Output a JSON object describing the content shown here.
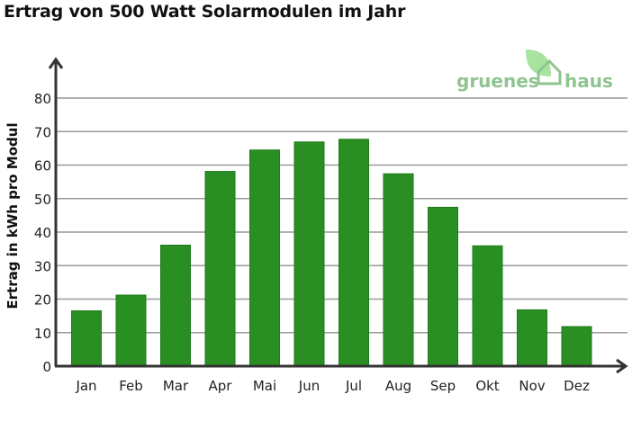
{
  "chart_data": {
    "type": "bar",
    "title": "Ertrag von 500 Watt Solarmodulen im Jahr",
    "xlabel": "",
    "ylabel": "Ertrag in kWh pro Modul",
    "categories": [
      "Jan",
      "Feb",
      "Mar",
      "Apr",
      "Mai",
      "Jun",
      "Jul",
      "Aug",
      "Sep",
      "Okt",
      "Nov",
      "Dez"
    ],
    "values": [
      16.5,
      21.2,
      36.1,
      58.1,
      64.5,
      66.9,
      67.7,
      57.4,
      47.4,
      35.9,
      16.8,
      11.8
    ],
    "ylim": [
      0,
      80
    ],
    "yticks": [
      0,
      10,
      20,
      30,
      40,
      50,
      60,
      70,
      80
    ],
    "grid": true,
    "bar_color": "#2a8f22",
    "legend": "none"
  },
  "logo": {
    "left": "gruenes",
    "right": "haus"
  }
}
